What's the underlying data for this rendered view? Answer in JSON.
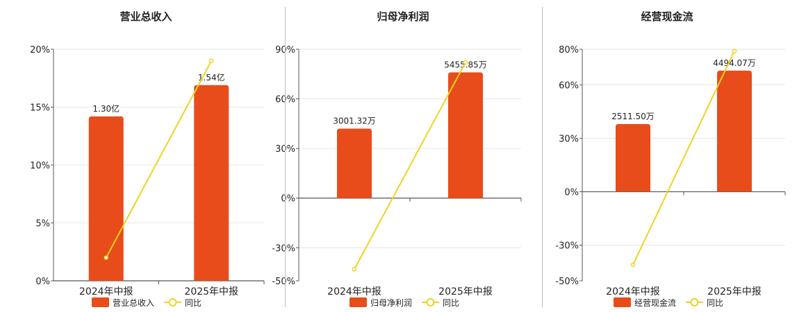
{
  "colors": {
    "bar": "#e84c1a",
    "line": "#f0d320",
    "grid": "#e6e6e6",
    "axis": "#555555",
    "text": "#222222"
  },
  "chart_data": [
    {
      "type": "bar",
      "title": "营业总收入",
      "categories": [
        "2024年中报",
        "2025年中报"
      ],
      "yticks": [
        "0%",
        "5%",
        "10%",
        "15%",
        "20%"
      ],
      "series": [
        {
          "name": "营业总收入",
          "type": "bar",
          "values": [
            14.2,
            16.9
          ],
          "labels": [
            "1.30亿",
            "1.54亿"
          ]
        },
        {
          "name": "同比",
          "type": "line",
          "values": [
            2.0,
            19.0
          ]
        }
      ],
      "ylim": [
        0,
        20
      ],
      "grid": true,
      "legend": "bottom"
    },
    {
      "type": "bar",
      "title": "归母净利润",
      "categories": [
        "2024年中报",
        "2025年中报"
      ],
      "yticks": [
        "-50%",
        "-30%",
        "0%",
        "30%",
        "60%",
        "90%"
      ],
      "series": [
        {
          "name": "归母净利润",
          "type": "bar",
          "values": [
            42,
            76
          ],
          "labels": [
            "3001.32万",
            "5455.85万"
          ]
        },
        {
          "name": "同比",
          "type": "line",
          "values": [
            -43,
            82
          ]
        }
      ],
      "ylim": [
        -50,
        90
      ],
      "grid": true,
      "legend": "bottom"
    },
    {
      "type": "bar",
      "title": "经营现金流",
      "categories": [
        "2024年中报",
        "2025年中报"
      ],
      "yticks": [
        "-50%",
        "-30%",
        "0%",
        "30%",
        "60%",
        "80%"
      ],
      "series": [
        {
          "name": "经营现金流",
          "type": "bar",
          "values": [
            38,
            68
          ],
          "labels": [
            "2511.50万",
            "4494.07万"
          ]
        },
        {
          "name": "同比",
          "type": "line",
          "values": [
            -41,
            79
          ]
        }
      ],
      "ylim": [
        -50,
        80
      ],
      "grid": true,
      "legend": "bottom"
    }
  ]
}
